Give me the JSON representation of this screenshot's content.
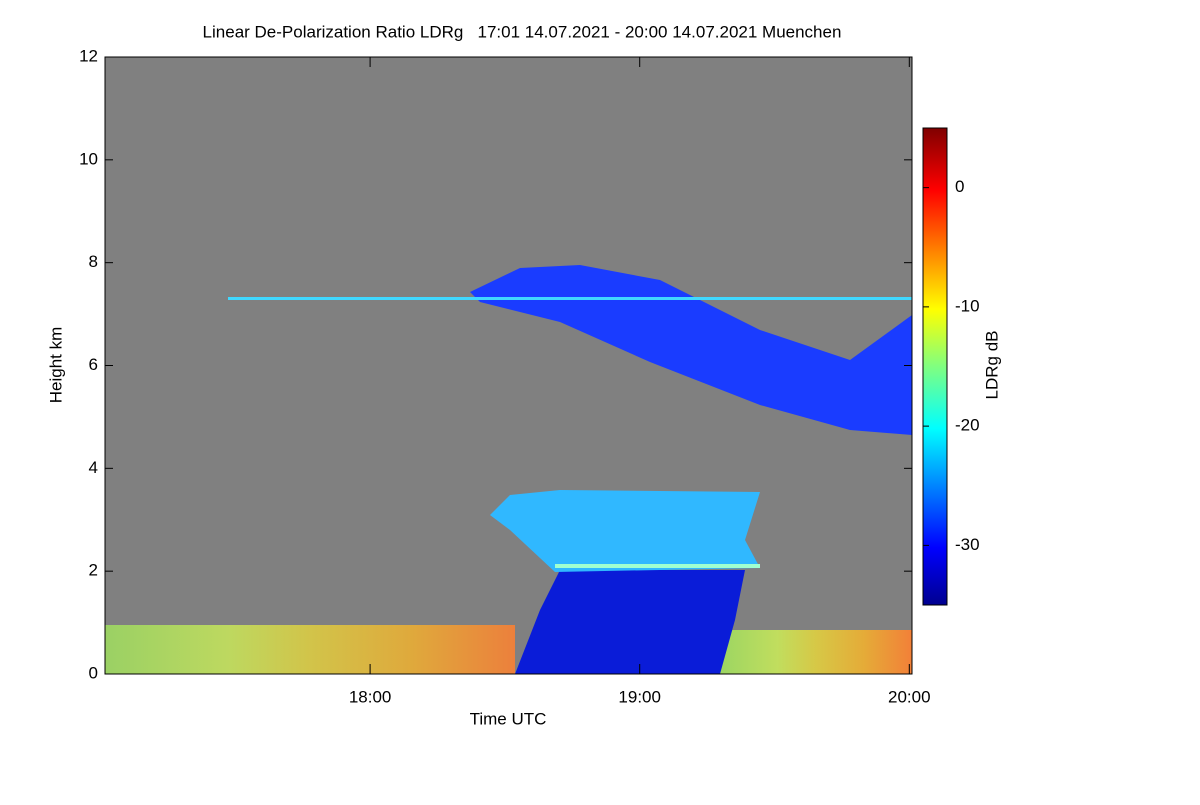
{
  "chart_data": {
    "type": "heatmap",
    "title": "Linear De-Polarization Ratio LDRg   17:01 14.07.2021 - 20:00 14.07.2021 Muenchen",
    "xlabel": "Time UTC",
    "ylabel": "Height km",
    "colorbar_label": "LDRg dB",
    "xlim": [
      17.0167,
      20.01
    ],
    "xticks": [
      {
        "value": 18,
        "label": "18:00"
      },
      {
        "value": 19,
        "label": "19:00"
      },
      {
        "value": 20,
        "label": "20:00"
      }
    ],
    "ylim": [
      0,
      12
    ],
    "yticks": [
      0,
      2,
      4,
      6,
      8,
      10,
      12
    ],
    "zlim": [
      -35,
      5
    ],
    "zticks": [
      0,
      -10,
      -20,
      -30
    ],
    "colormap": "jet",
    "background_color": "#808080"
  }
}
